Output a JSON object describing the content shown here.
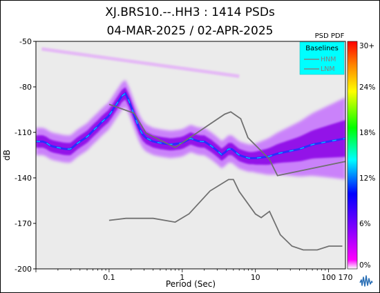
{
  "chart_data": {
    "type": "heatmap",
    "title": "XJ.BRS10.--.HH3 : 1414 PSDs",
    "subtitle": "04-MAR-2025 / 02-APR-2025",
    "xlabel": "Period (Sec)",
    "ylabel": "dB",
    "x_scale": "log",
    "xlim": [
      0.01,
      170
    ],
    "ylim": [
      -200,
      -50
    ],
    "x_ticks": [
      {
        "value": 0.1,
        "label": "0.1"
      },
      {
        "value": 1,
        "label": "1"
      },
      {
        "value": 10,
        "label": "10"
      },
      {
        "value": 100,
        "label": "100"
      },
      {
        "value": 170,
        "label": "170"
      }
    ],
    "y_ticks": [
      -50,
      -80,
      -110,
      -140,
      -170,
      -200
    ],
    "colorbar": {
      "title": "PSD PDF",
      "ticks": [
        "30+",
        "24%",
        "18%",
        "12%",
        "6%",
        "0%"
      ],
      "colors": [
        "#ff0000",
        "#ff8000",
        "#ffff00",
        "#00ff00",
        "#00ffff",
        "#0000ff",
        "#8000ff",
        "#ff00ff",
        "#ffffff"
      ]
    },
    "legend": {
      "title": "Baselines",
      "entries": [
        "HNM",
        "LNM"
      ],
      "placement": "top-right"
    },
    "baselines": [
      {
        "name": "HNM",
        "points": [
          [
            0.1,
            -91.5
          ],
          [
            0.22,
            -97.4
          ],
          [
            0.32,
            -110.5
          ],
          [
            0.8,
            -120
          ],
          [
            3.8,
            -98
          ],
          [
            4.6,
            -96.5
          ],
          [
            6.3,
            -101
          ],
          [
            7.9,
            -113.5
          ],
          [
            15.4,
            -127.5
          ],
          [
            20,
            -138.5
          ],
          [
            354.8,
            -126
          ]
        ]
      },
      {
        "name": "LNM",
        "points": [
          [
            0.1,
            -168
          ],
          [
            0.17,
            -166.7
          ],
          [
            0.4,
            -166.7
          ],
          [
            0.8,
            -169.2
          ],
          [
            1.24,
            -163.7
          ],
          [
            2.4,
            -148.6
          ],
          [
            4.3,
            -141.1
          ],
          [
            5,
            -141.1
          ],
          [
            6,
            -149
          ],
          [
            10,
            -163.8
          ],
          [
            12,
            -166.2
          ],
          [
            15.6,
            -162.1
          ],
          [
            21.9,
            -177.5
          ],
          [
            31.6,
            -185
          ],
          [
            45,
            -187.5
          ],
          [
            70,
            -187.5
          ],
          [
            101,
            -185
          ],
          [
            154,
            -185
          ]
        ]
      }
    ],
    "pdf_ridge": [
      [
        0.011,
        -116
      ],
      [
        0.013,
        -116
      ],
      [
        0.016,
        -119
      ],
      [
        0.02,
        -120
      ],
      [
        0.025,
        -121
      ],
      [
        0.03,
        -121
      ],
      [
        0.035,
        -118
      ],
      [
        0.04,
        -116
      ],
      [
        0.05,
        -113
      ],
      [
        0.06,
        -109
      ],
      [
        0.07,
        -106
      ],
      [
        0.08,
        -103
      ],
      [
        0.1,
        -99
      ],
      [
        0.12,
        -93
      ],
      [
        0.15,
        -86
      ],
      [
        0.17,
        -84
      ],
      [
        0.2,
        -93
      ],
      [
        0.25,
        -106
      ],
      [
        0.3,
        -113
      ],
      [
        0.4,
        -116
      ],
      [
        0.5,
        -117
      ],
      [
        0.7,
        -118
      ],
      [
        1,
        -117
      ],
      [
        1.3,
        -114
      ],
      [
        1.7,
        -116
      ],
      [
        2,
        -116
      ],
      [
        2.5,
        -119
      ],
      [
        3,
        -122
      ],
      [
        3.5,
        -125
      ],
      [
        4.5,
        -120
      ],
      [
        6,
        -125
      ],
      [
        8,
        -127
      ],
      [
        10,
        -127
      ],
      [
        15,
        -126
      ],
      [
        20,
        -124
      ],
      [
        40,
        -121
      ],
      [
        60,
        -118
      ],
      [
        100,
        -116
      ],
      [
        170,
        -114
      ]
    ]
  },
  "icons": {
    "logo": "iris-waveform-logo"
  }
}
